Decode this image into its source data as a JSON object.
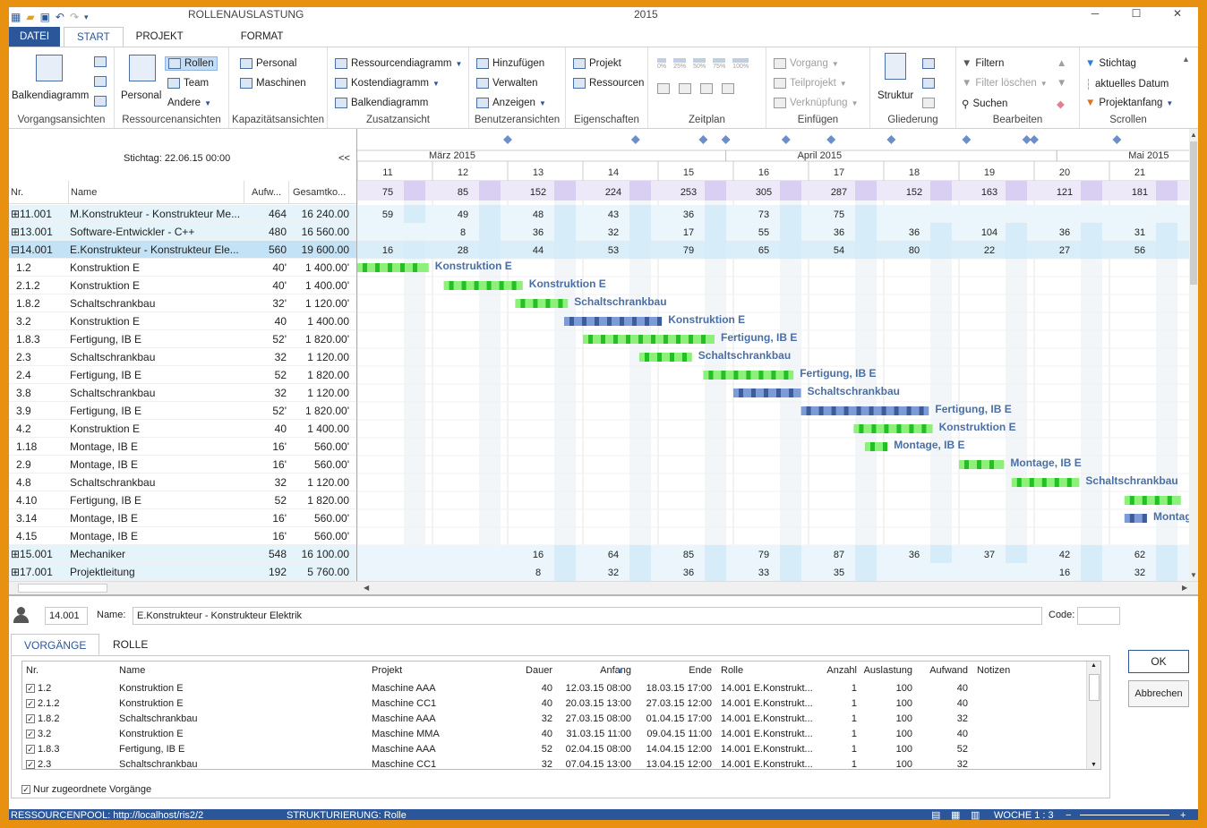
{
  "window": {
    "title_left": "ROLLENAUSLASTUNG",
    "title_mid": "2015"
  },
  "tabs": [
    "DATEI",
    "START",
    "PROJEKT",
    "FORMAT"
  ],
  "ribbon": {
    "groups": {
      "vorgangsansichten": {
        "label": "Vorgangsansichten",
        "balken": "Balkendiagramm"
      },
      "ressourcenansichten": {
        "label": "Ressourcenansichten",
        "personal": "Personal",
        "rollen": "Rollen",
        "team": "Team",
        "andere": "Andere"
      },
      "kapazitaet": {
        "label": "Kapazitätsansichten",
        "personal": "Personal",
        "maschinen": "Maschinen"
      },
      "zusatz": {
        "label": "Zusatzansicht",
        "ressourcendiagramm": "Ressourcendiagramm",
        "kostendiagramm": "Kostendiagramm",
        "balkendiagramm": "Balkendiagramm"
      },
      "benutzer": {
        "label": "Benutzeransichten",
        "hinzufuegen": "Hinzufügen",
        "verwalten": "Verwalten",
        "anzeigen": "Anzeigen"
      },
      "eigenschaften": {
        "label": "Eigenschaften",
        "projekt": "Projekt",
        "ressourcen": "Ressourcen"
      },
      "zeitplan": {
        "label": "Zeitplan",
        "percents": [
          "0%",
          "25%",
          "50%",
          "75%",
          "100%"
        ]
      },
      "einfuegen": {
        "label": "Einfügen",
        "vorgang": "Vorgang",
        "teilprojekt": "Teilprojekt",
        "verknuepfung": "Verknüpfung"
      },
      "gliederung": {
        "label": "Gliederung",
        "struktur": "Struktur"
      },
      "bearbeiten": {
        "label": "Bearbeiten",
        "filtern": "Filtern",
        "filter_loeschen": "Filter löschen",
        "suchen": "Suchen"
      },
      "scrollen": {
        "label": "Scrollen",
        "stichtag": "Stichtag",
        "aktuelles_datum": "aktuelles Datum",
        "projektanfang": "Projektanfang"
      }
    }
  },
  "grid": {
    "stichtag": "Stichtag: 22.06.15 00:00",
    "collapse": "<<",
    "columns": {
      "nr": "Nr.",
      "name": "Name",
      "aufwand": "Aufw...",
      "gesamtkosten": "Gesamtko..."
    },
    "rows": [
      {
        "nr": "11.001",
        "name": "M.Konstrukteur - Konstrukteur Me...",
        "auf": "464",
        "ges": "16 240.00",
        "type": "res",
        "exp": "+"
      },
      {
        "nr": "13.001",
        "name": "Software-Entwickler - C++",
        "auf": "480",
        "ges": "16 560.00",
        "type": "res",
        "exp": "+"
      },
      {
        "nr": "14.001",
        "name": "E.Konstrukteur - Konstrukteur Ele...",
        "auf": "560",
        "ges": "19 600.00",
        "type": "selres",
        "exp": "-"
      },
      {
        "nr": "1.2",
        "name": "Konstruktion E",
        "auf": "40'",
        "ges": "1 400.00'",
        "type": "task"
      },
      {
        "nr": "2.1.2",
        "name": "Konstruktion E",
        "auf": "40'",
        "ges": "1 400.00'",
        "type": "task"
      },
      {
        "nr": "1.8.2",
        "name": "Schaltschrankbau",
        "auf": "32'",
        "ges": "1 120.00'",
        "type": "task"
      },
      {
        "nr": "3.2",
        "name": "Konstruktion E",
        "auf": "40",
        "ges": "1 400.00",
        "type": "task"
      },
      {
        "nr": "1.8.3",
        "name": "Fertigung, IB E",
        "auf": "52'",
        "ges": "1 820.00'",
        "type": "task"
      },
      {
        "nr": "2.3",
        "name": "Schaltschrankbau",
        "auf": "32",
        "ges": "1 120.00",
        "type": "task"
      },
      {
        "nr": "2.4",
        "name": "Fertigung, IB E",
        "auf": "52",
        "ges": "1 820.00",
        "type": "task"
      },
      {
        "nr": "3.8",
        "name": "Schaltschrankbau",
        "auf": "32",
        "ges": "1 120.00",
        "type": "task"
      },
      {
        "nr": "3.9",
        "name": "Fertigung, IB E",
        "auf": "52'",
        "ges": "1 820.00'",
        "type": "task"
      },
      {
        "nr": "4.2",
        "name": "Konstruktion E",
        "auf": "40",
        "ges": "1 400.00",
        "type": "task"
      },
      {
        "nr": "1.18",
        "name": "Montage, IB E",
        "auf": "16'",
        "ges": "560.00'",
        "type": "task"
      },
      {
        "nr": "2.9",
        "name": "Montage, IB E",
        "auf": "16'",
        "ges": "560.00'",
        "type": "task"
      },
      {
        "nr": "4.8",
        "name": "Schaltschrankbau",
        "auf": "32",
        "ges": "1 120.00",
        "type": "task"
      },
      {
        "nr": "4.10",
        "name": "Fertigung, IB E",
        "auf": "52",
        "ges": "1 820.00",
        "type": "task"
      },
      {
        "nr": "3.14",
        "name": "Montage, IB E",
        "auf": "16'",
        "ges": "560.00'",
        "type": "task"
      },
      {
        "nr": "4.15",
        "name": "Montage, IB E",
        "auf": "16'",
        "ges": "560.00'",
        "type": "task"
      },
      {
        "nr": "15.001",
        "name": "Mechaniker",
        "auf": "548",
        "ges": "16 100.00",
        "type": "res",
        "exp": "+"
      },
      {
        "nr": "17.001",
        "name": "Projektleitung",
        "auf": "192",
        "ges": "5 760.00",
        "type": "res",
        "exp": "+"
      }
    ]
  },
  "timeline": {
    "months": [
      {
        "label": "März 2015",
        "week": 0.0
      },
      {
        "label": "April 2015",
        "week": 4.9
      },
      {
        "label": "Mai 2015",
        "week": 9.3
      }
    ],
    "weeks": [
      "11",
      "12",
      "13",
      "14",
      "15",
      "16",
      "17",
      "18",
      "19",
      "20",
      "21"
    ],
    "milestones": [
      13.0,
      14.7,
      15.6,
      15.9,
      16.7,
      17.3,
      18.1,
      19.1,
      19.9,
      20.0,
      21.1
    ],
    "totals": [
      "75",
      "85",
      "152",
      "224",
      "253",
      "305",
      "287",
      "152",
      "163",
      "121",
      "181"
    ],
    "res_rows": [
      {
        "row": 0,
        "values": [
          "59",
          "49",
          "48",
          "43",
          "36",
          "73",
          "75",
          "",
          "",
          "",
          ""
        ]
      },
      {
        "row": 1,
        "values": [
          "",
          "8",
          "36",
          "32",
          "17",
          "55",
          "36",
          "36",
          "104",
          "36",
          "31"
        ]
      },
      {
        "row": 2,
        "values": [
          "16",
          "28",
          "44",
          "53",
          "79",
          "65",
          "54",
          "80",
          "22",
          "27",
          "56"
        ]
      },
      {
        "row": 19,
        "values": [
          "",
          "",
          "16",
          "64",
          "85",
          "79",
          "87",
          "36",
          "37",
          "42",
          "62"
        ]
      },
      {
        "row": 20,
        "values": [
          "",
          "",
          "8",
          "32",
          "36",
          "33",
          "35",
          "",
          "",
          "16",
          "32"
        ]
      }
    ],
    "bars": [
      {
        "row": 3,
        "start": 11.0,
        "end": 11.95,
        "color": "green",
        "label": "Konstruktion E"
      },
      {
        "row": 4,
        "start": 12.15,
        "end": 13.2,
        "color": "green",
        "label": "Konstruktion E"
      },
      {
        "row": 5,
        "start": 13.1,
        "end": 13.8,
        "color": "green",
        "label": "Schaltschrankbau"
      },
      {
        "row": 6,
        "start": 13.75,
        "end": 15.05,
        "color": "blue",
        "label": "Konstruktion E"
      },
      {
        "row": 7,
        "start": 14.0,
        "end": 15.75,
        "color": "green",
        "label": "Fertigung, IB E"
      },
      {
        "row": 8,
        "start": 14.75,
        "end": 15.45,
        "color": "green",
        "label": "Schaltschrankbau"
      },
      {
        "row": 9,
        "start": 15.6,
        "end": 16.8,
        "color": "green",
        "label": "Fertigung, IB E"
      },
      {
        "row": 10,
        "start": 16.0,
        "end": 16.9,
        "color": "blue",
        "label": "Schaltschrankbau"
      },
      {
        "row": 11,
        "start": 16.9,
        "end": 18.6,
        "color": "blue",
        "label": "Fertigung, IB E"
      },
      {
        "row": 12,
        "start": 17.6,
        "end": 18.65,
        "color": "green",
        "label": "Konstruktion E"
      },
      {
        "row": 13,
        "start": 17.75,
        "end": 18.05,
        "color": "green",
        "label": "Montage, IB E"
      },
      {
        "row": 14,
        "start": 19.0,
        "end": 19.6,
        "color": "green",
        "label": "Montage, IB E"
      },
      {
        "row": 15,
        "start": 19.7,
        "end": 20.6,
        "color": "green",
        "label": "Schaltschrankbau"
      },
      {
        "row": 16,
        "start": 21.2,
        "end": 21.95,
        "color": "green",
        "label": ""
      },
      {
        "row": 17,
        "start": 21.2,
        "end": 21.5,
        "color": "blue",
        "label": "Montage"
      }
    ]
  },
  "detail": {
    "id": "14.001",
    "name_label": "Name:",
    "name_value": "E.Konstrukteur - Konstrukteur Elektrik",
    "code_label": "Code:",
    "code_value": "",
    "tabs": [
      "VORGÄNGE",
      "ROLLE"
    ],
    "columns": [
      "Nr.",
      "Name",
      "Projekt",
      "Dauer",
      "Anfang",
      "Ende",
      "Rolle",
      "Anzahl",
      "Auslastung",
      "Aufwand",
      "Notizen"
    ],
    "rows": [
      {
        "nr": "1.2",
        "name": "Konstruktion E",
        "projekt": "Maschine AAA",
        "dauer": "40",
        "anfang": "12.03.15 08:00",
        "ende": "18.03.15 17:00",
        "rolle": "14.001 E.Konstrukt...",
        "anzahl": "1",
        "auslastung": "100",
        "aufwand": "40"
      },
      {
        "nr": "2.1.2",
        "name": "Konstruktion E",
        "projekt": "Maschine CC1",
        "dauer": "40",
        "anfang": "20.03.15 13:00",
        "ende": "27.03.15 12:00",
        "rolle": "14.001 E.Konstrukt...",
        "anzahl": "1",
        "auslastung": "100",
        "aufwand": "40"
      },
      {
        "nr": "1.8.2",
        "name": "Schaltschrankbau",
        "projekt": "Maschine AAA",
        "dauer": "32",
        "anfang": "27.03.15 08:00",
        "ende": "01.04.15 17:00",
        "rolle": "14.001 E.Konstrukt...",
        "anzahl": "1",
        "auslastung": "100",
        "aufwand": "32"
      },
      {
        "nr": "3.2",
        "name": "Konstruktion E",
        "projekt": "Maschine MMA",
        "dauer": "40",
        "anfang": "31.03.15 11:00",
        "ende": "09.04.15 11:00",
        "rolle": "14.001 E.Konstrukt...",
        "anzahl": "1",
        "auslastung": "100",
        "aufwand": "40"
      },
      {
        "nr": "1.8.3",
        "name": "Fertigung, IB E",
        "projekt": "Maschine AAA",
        "dauer": "52",
        "anfang": "02.04.15 08:00",
        "ende": "14.04.15 12:00",
        "rolle": "14.001 E.Konstrukt...",
        "anzahl": "1",
        "auslastung": "100",
        "aufwand": "52"
      },
      {
        "nr": "2.3",
        "name": "Schaltschrankbau",
        "projekt": "Maschine CC1",
        "dauer": "32",
        "anfang": "07.04.15 13:00",
        "ende": "13.04.15 12:00",
        "rolle": "14.001 E.Konstrukt...",
        "anzahl": "1",
        "auslastung": "100",
        "aufwand": "32"
      }
    ],
    "filter_checkbox": "Nur zugeordnete Vorgänge",
    "ok": "OK",
    "cancel": "Abbrechen"
  },
  "status": {
    "pool": "RESSOURCENPOOL: http://localhost/ris2/2",
    "struktur": "STRUKTURIERUNG: Rolle",
    "woche": "WOCHE 1 : 3"
  }
}
